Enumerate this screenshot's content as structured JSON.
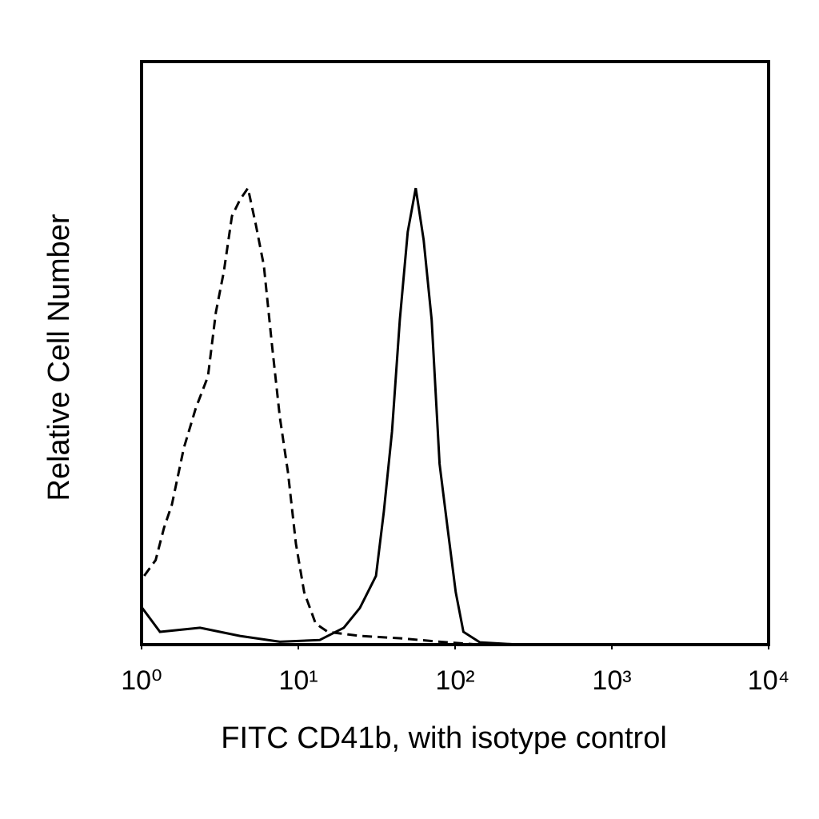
{
  "chart_data": {
    "type": "line",
    "x_label": "FITC CD41b, with isotype control",
    "y_label": "Relative Cell Number",
    "xlim": [
      1,
      10000
    ],
    "ylim": [
      0,
      100
    ],
    "log_x": true,
    "xticks": [
      {
        "value": 1,
        "label": "10⁰"
      },
      {
        "value": 10,
        "label": "10¹"
      },
      {
        "value": 100,
        "label": "10²"
      },
      {
        "value": 1000,
        "label": "10³"
      },
      {
        "value": 10000,
        "label": "10⁴"
      }
    ],
    "series": [
      {
        "color": "#000000",
        "dash": "dashed",
        "x": [
          1.04,
          1.23,
          1.39,
          1.56,
          1.86,
          2.22,
          2.65,
          2.98,
          3.35,
          3.77,
          4.24,
          4.77,
          5.36,
          6.03,
          6.78,
          7.62,
          8.58,
          9.65,
          10.9,
          12.9,
          15.4,
          24.7,
          44.4,
          80,
          144
        ],
        "values": [
          11.8,
          14.5,
          20,
          24,
          33.7,
          40.6,
          46,
          57,
          64,
          73.5,
          76.3,
          78.3,
          72,
          65,
          51.6,
          39,
          29.6,
          17.3,
          9,
          3.6,
          2.2,
          1.5,
          1.1,
          0.5,
          0
        ]
      },
      {
        "color": "#000000",
        "dash": "solid",
        "x": [
          1.01,
          1.31,
          2.36,
          4.24,
          7.62,
          13.7,
          19.5,
          24.7,
          31.3,
          35.1,
          39.6,
          44.4,
          49.9,
          56.1,
          63,
          70.9,
          79.6,
          89.5,
          101,
          113,
          144,
          258
        ],
        "values": [
          6.3,
          2.2,
          2.9,
          1.5,
          0.5,
          0.8,
          2.9,
          6.3,
          11.8,
          22.8,
          36.5,
          55.7,
          70.8,
          78.3,
          69.4,
          55.7,
          31,
          20,
          9,
          2.2,
          0.4,
          0
        ]
      }
    ]
  }
}
